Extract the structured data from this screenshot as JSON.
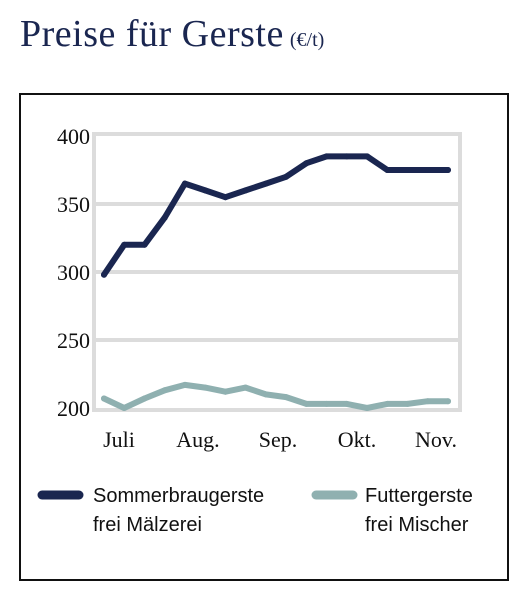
{
  "header": {
    "title": "Preise für Gerste",
    "unit": "(€/t)"
  },
  "chart_data": {
    "type": "line",
    "title": "Preise für Gerste",
    "unit": "(€/t)",
    "xlabel": "",
    "ylabel": "",
    "x_ticks": [
      "Juli",
      "Aug.",
      "Sep.",
      "Okt.",
      "Nov."
    ],
    "y_ticks": [
      200,
      250,
      300,
      350,
      400
    ],
    "ylim": [
      200,
      400
    ],
    "grid": true,
    "legend_position": "bottom",
    "series": [
      {
        "name": "Sommerbraugerste frei Mälzerei",
        "label_lines": [
          "Sommerbraugerste",
          "frei Mälzerei"
        ],
        "color": "#1a2650",
        "values": [
          298,
          320,
          320,
          340,
          365,
          360,
          355,
          360,
          365,
          370,
          380,
          385,
          385,
          385,
          375,
          375,
          375,
          375
        ]
      },
      {
        "name": "Futtergerste frei Mischer",
        "label_lines": [
          "Futtergerste",
          "frei Mischer"
        ],
        "color": "#8fb0b0",
        "values": [
          207,
          200,
          207,
          213,
          217,
          215,
          212,
          215,
          210,
          208,
          203,
          203,
          203,
          200,
          203,
          203,
          205,
          205
        ]
      }
    ]
  }
}
